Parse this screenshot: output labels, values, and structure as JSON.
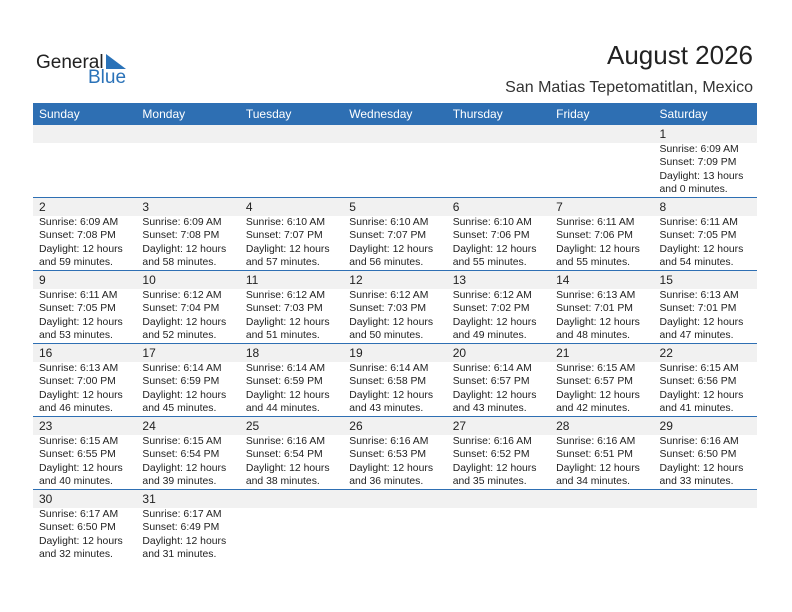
{
  "logo": {
    "line1": "General",
    "line2": "Blue"
  },
  "title": "August 2026",
  "location": "San Matias Tepetomatitlan, Mexico",
  "weekdays": [
    "Sunday",
    "Monday",
    "Tuesday",
    "Wednesday",
    "Thursday",
    "Friday",
    "Saturday"
  ],
  "weeks": [
    [
      null,
      null,
      null,
      null,
      null,
      null,
      {
        "day": "1",
        "sunrise": "Sunrise: 6:09 AM",
        "sunset": "Sunset: 7:09 PM",
        "daylight": "Daylight: 13 hours",
        "minutes": "and 0 minutes."
      }
    ],
    [
      {
        "day": "2",
        "sunrise": "Sunrise: 6:09 AM",
        "sunset": "Sunset: 7:08 PM",
        "daylight": "Daylight: 12 hours",
        "minutes": "and 59 minutes."
      },
      {
        "day": "3",
        "sunrise": "Sunrise: 6:09 AM",
        "sunset": "Sunset: 7:08 PM",
        "daylight": "Daylight: 12 hours",
        "minutes": "and 58 minutes."
      },
      {
        "day": "4",
        "sunrise": "Sunrise: 6:10 AM",
        "sunset": "Sunset: 7:07 PM",
        "daylight": "Daylight: 12 hours",
        "minutes": "and 57 minutes."
      },
      {
        "day": "5",
        "sunrise": "Sunrise: 6:10 AM",
        "sunset": "Sunset: 7:07 PM",
        "daylight": "Daylight: 12 hours",
        "minutes": "and 56 minutes."
      },
      {
        "day": "6",
        "sunrise": "Sunrise: 6:10 AM",
        "sunset": "Sunset: 7:06 PM",
        "daylight": "Daylight: 12 hours",
        "minutes": "and 55 minutes."
      },
      {
        "day": "7",
        "sunrise": "Sunrise: 6:11 AM",
        "sunset": "Sunset: 7:06 PM",
        "daylight": "Daylight: 12 hours",
        "minutes": "and 55 minutes."
      },
      {
        "day": "8",
        "sunrise": "Sunrise: 6:11 AM",
        "sunset": "Sunset: 7:05 PM",
        "daylight": "Daylight: 12 hours",
        "minutes": "and 54 minutes."
      }
    ],
    [
      {
        "day": "9",
        "sunrise": "Sunrise: 6:11 AM",
        "sunset": "Sunset: 7:05 PM",
        "daylight": "Daylight: 12 hours",
        "minutes": "and 53 minutes."
      },
      {
        "day": "10",
        "sunrise": "Sunrise: 6:12 AM",
        "sunset": "Sunset: 7:04 PM",
        "daylight": "Daylight: 12 hours",
        "minutes": "and 52 minutes."
      },
      {
        "day": "11",
        "sunrise": "Sunrise: 6:12 AM",
        "sunset": "Sunset: 7:03 PM",
        "daylight": "Daylight: 12 hours",
        "minutes": "and 51 minutes."
      },
      {
        "day": "12",
        "sunrise": "Sunrise: 6:12 AM",
        "sunset": "Sunset: 7:03 PM",
        "daylight": "Daylight: 12 hours",
        "minutes": "and 50 minutes."
      },
      {
        "day": "13",
        "sunrise": "Sunrise: 6:12 AM",
        "sunset": "Sunset: 7:02 PM",
        "daylight": "Daylight: 12 hours",
        "minutes": "and 49 minutes."
      },
      {
        "day": "14",
        "sunrise": "Sunrise: 6:13 AM",
        "sunset": "Sunset: 7:01 PM",
        "daylight": "Daylight: 12 hours",
        "minutes": "and 48 minutes."
      },
      {
        "day": "15",
        "sunrise": "Sunrise: 6:13 AM",
        "sunset": "Sunset: 7:01 PM",
        "daylight": "Daylight: 12 hours",
        "minutes": "and 47 minutes."
      }
    ],
    [
      {
        "day": "16",
        "sunrise": "Sunrise: 6:13 AM",
        "sunset": "Sunset: 7:00 PM",
        "daylight": "Daylight: 12 hours",
        "minutes": "and 46 minutes."
      },
      {
        "day": "17",
        "sunrise": "Sunrise: 6:14 AM",
        "sunset": "Sunset: 6:59 PM",
        "daylight": "Daylight: 12 hours",
        "minutes": "and 45 minutes."
      },
      {
        "day": "18",
        "sunrise": "Sunrise: 6:14 AM",
        "sunset": "Sunset: 6:59 PM",
        "daylight": "Daylight: 12 hours",
        "minutes": "and 44 minutes."
      },
      {
        "day": "19",
        "sunrise": "Sunrise: 6:14 AM",
        "sunset": "Sunset: 6:58 PM",
        "daylight": "Daylight: 12 hours",
        "minutes": "and 43 minutes."
      },
      {
        "day": "20",
        "sunrise": "Sunrise: 6:14 AM",
        "sunset": "Sunset: 6:57 PM",
        "daylight": "Daylight: 12 hours",
        "minutes": "and 43 minutes."
      },
      {
        "day": "21",
        "sunrise": "Sunrise: 6:15 AM",
        "sunset": "Sunset: 6:57 PM",
        "daylight": "Daylight: 12 hours",
        "minutes": "and 42 minutes."
      },
      {
        "day": "22",
        "sunrise": "Sunrise: 6:15 AM",
        "sunset": "Sunset: 6:56 PM",
        "daylight": "Daylight: 12 hours",
        "minutes": "and 41 minutes."
      }
    ],
    [
      {
        "day": "23",
        "sunrise": "Sunrise: 6:15 AM",
        "sunset": "Sunset: 6:55 PM",
        "daylight": "Daylight: 12 hours",
        "minutes": "and 40 minutes."
      },
      {
        "day": "24",
        "sunrise": "Sunrise: 6:15 AM",
        "sunset": "Sunset: 6:54 PM",
        "daylight": "Daylight: 12 hours",
        "minutes": "and 39 minutes."
      },
      {
        "day": "25",
        "sunrise": "Sunrise: 6:16 AM",
        "sunset": "Sunset: 6:54 PM",
        "daylight": "Daylight: 12 hours",
        "minutes": "and 38 minutes."
      },
      {
        "day": "26",
        "sunrise": "Sunrise: 6:16 AM",
        "sunset": "Sunset: 6:53 PM",
        "daylight": "Daylight: 12 hours",
        "minutes": "and 36 minutes."
      },
      {
        "day": "27",
        "sunrise": "Sunrise: 6:16 AM",
        "sunset": "Sunset: 6:52 PM",
        "daylight": "Daylight: 12 hours",
        "minutes": "and 35 minutes."
      },
      {
        "day": "28",
        "sunrise": "Sunrise: 6:16 AM",
        "sunset": "Sunset: 6:51 PM",
        "daylight": "Daylight: 12 hours",
        "minutes": "and 34 minutes."
      },
      {
        "day": "29",
        "sunrise": "Sunrise: 6:16 AM",
        "sunset": "Sunset: 6:50 PM",
        "daylight": "Daylight: 12 hours",
        "minutes": "and 33 minutes."
      }
    ],
    [
      {
        "day": "30",
        "sunrise": "Sunrise: 6:17 AM",
        "sunset": "Sunset: 6:50 PM",
        "daylight": "Daylight: 12 hours",
        "minutes": "and 32 minutes."
      },
      {
        "day": "31",
        "sunrise": "Sunrise: 6:17 AM",
        "sunset": "Sunset: 6:49 PM",
        "daylight": "Daylight: 12 hours",
        "minutes": "and 31 minutes."
      },
      null,
      null,
      null,
      null,
      null
    ]
  ]
}
